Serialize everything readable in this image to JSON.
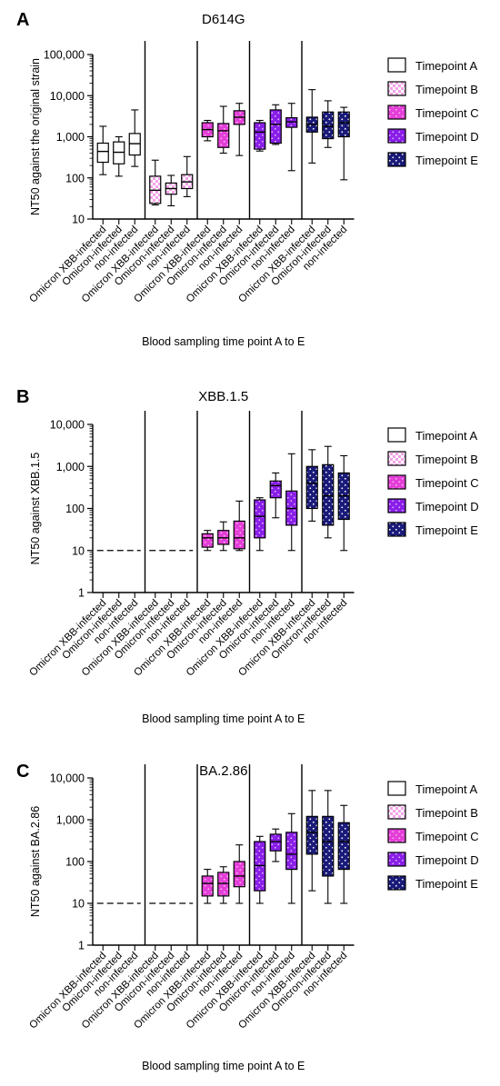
{
  "colors": {
    "A": "#ffffff",
    "B": "#f3a3e8",
    "C": "#e43ed8",
    "D": "#8a1ee8",
    "E": "#1a1a7a",
    "dots_B": "#ffffff",
    "dots_C": "#f6b6f0",
    "dots_D": "#d9b8ff",
    "dots_E": "#ffffff",
    "ink": "#000000"
  },
  "legend": {
    "items": [
      {
        "key": "A",
        "label": "Timepoint A"
      },
      {
        "key": "B",
        "label": "Timepoint B"
      },
      {
        "key": "C",
        "label": "Timepoint C"
      },
      {
        "key": "D",
        "label": "Timepoint D"
      },
      {
        "key": "E",
        "label": "Timepoint E"
      }
    ]
  },
  "chart_data": [
    {
      "panel": "A",
      "type": "box",
      "title": "D614G",
      "ylabel": "NT50 against the original strain",
      "xlabel": "Blood sampling time point A to E",
      "y_scale": "log",
      "ylim": [
        10,
        100000
      ],
      "yticks": [
        "10",
        "100",
        "1,000",
        "10,000",
        "100,000"
      ],
      "groups": [
        "Timepoint A",
        "Timepoint B",
        "Timepoint C",
        "Timepoint D",
        "Timepoint E"
      ],
      "categories": [
        "Omicron XBB-infected",
        "Omicron-infected",
        "non-infected"
      ],
      "boxes": [
        [
          {
            "min": 120,
            "q1": 240,
            "median": 440,
            "q3": 700,
            "max": 1800
          },
          {
            "min": 110,
            "q1": 220,
            "median": 420,
            "q3": 750,
            "max": 1000
          },
          {
            "min": 190,
            "q1": 360,
            "median": 680,
            "q3": 1200,
            "max": 4500
          }
        ],
        [
          {
            "min": 22,
            "q1": 24,
            "median": 50,
            "q3": 110,
            "max": 270
          },
          {
            "min": 21,
            "q1": 40,
            "median": 55,
            "q3": 75,
            "max": 115
          },
          {
            "min": 35,
            "q1": 55,
            "median": 80,
            "q3": 120,
            "max": 330
          }
        ],
        [
          {
            "min": 800,
            "q1": 1000,
            "median": 1500,
            "q3": 2200,
            "max": 2500
          },
          {
            "min": 400,
            "q1": 550,
            "median": 1400,
            "q3": 2100,
            "max": 5500
          },
          {
            "min": 350,
            "q1": 2000,
            "median": 3000,
            "q3": 4300,
            "max": 6500
          }
        ],
        [
          {
            "min": 450,
            "q1": 500,
            "median": 1300,
            "q3": 2200,
            "max": 2500
          },
          {
            "min": 650,
            "q1": 700,
            "median": 2000,
            "q3": 4500,
            "max": 6000
          },
          {
            "min": 150,
            "q1": 1700,
            "median": 2300,
            "q3": 2900,
            "max": 6500
          }
        ],
        [
          {
            "min": 230,
            "q1": 1300,
            "median": 2000,
            "q3": 3000,
            "max": 14000
          },
          {
            "min": 550,
            "q1": 900,
            "median": 1800,
            "q3": 4000,
            "max": 7500
          },
          {
            "min": 90,
            "q1": 1000,
            "median": 2200,
            "q3": 4000,
            "max": 5200
          }
        ]
      ]
    },
    {
      "panel": "B",
      "type": "box",
      "title": "XBB.1.5",
      "ylabel": "NT50 against XBB.1.5",
      "xlabel": "Blood sampling time point A to E",
      "y_scale": "log",
      "ylim": [
        1,
        10000
      ],
      "yticks": [
        "1",
        "10",
        "100",
        "1,000",
        "10,000"
      ],
      "groups": [
        "Timepoint A",
        "Timepoint B",
        "Timepoint C",
        "Timepoint D",
        "Timepoint E"
      ],
      "categories": [
        "Omicron XBB-infected",
        "Omicron-infected",
        "non-infected"
      ],
      "dashed_groups": [
        0,
        1
      ],
      "dashed_value": 10,
      "boxes": [
        [],
        [],
        [
          {
            "min": 10,
            "q1": 12,
            "median": 20,
            "q3": 25,
            "max": 30
          },
          {
            "min": 10,
            "q1": 14,
            "median": 20,
            "q3": 30,
            "max": 48
          },
          {
            "min": 10,
            "q1": 11,
            "median": 20,
            "q3": 50,
            "max": 150
          }
        ],
        [
          {
            "min": 10,
            "q1": 20,
            "median": 65,
            "q3": 160,
            "max": 180
          },
          {
            "min": 60,
            "q1": 180,
            "median": 350,
            "q3": 450,
            "max": 700
          },
          {
            "min": 10,
            "q1": 40,
            "median": 100,
            "q3": 260,
            "max": 2000
          }
        ],
        [
          {
            "min": 50,
            "q1": 100,
            "median": 400,
            "q3": 1000,
            "max": 2500
          },
          {
            "min": 20,
            "q1": 40,
            "median": 200,
            "q3": 1100,
            "max": 3000
          },
          {
            "min": 10,
            "q1": 55,
            "median": 200,
            "q3": 700,
            "max": 1800
          }
        ]
      ]
    },
    {
      "panel": "C",
      "type": "box",
      "title": "BA.2.86",
      "ylabel": "NT50 against BA.2.86",
      "xlabel": "Blood sampling time point A to E",
      "y_scale": "log",
      "ylim": [
        1,
        10000
      ],
      "yticks": [
        "1",
        "10",
        "100",
        "1,000",
        "10,000"
      ],
      "groups": [
        "Timepoint A",
        "Timepoint B",
        "Timepoint C",
        "Timepoint D",
        "Timepoint E"
      ],
      "categories": [
        "Omicron XBB-infected",
        "Omicron-infected",
        "non-infected"
      ],
      "dashed_groups": [
        0,
        1
      ],
      "dashed_value": 10,
      "boxes": [
        [],
        [],
        [
          {
            "min": 10,
            "q1": 15,
            "median": 30,
            "q3": 45,
            "max": 65
          },
          {
            "min": 10,
            "q1": 15,
            "median": 30,
            "q3": 55,
            "max": 75
          },
          {
            "min": 10,
            "q1": 25,
            "median": 45,
            "q3": 100,
            "max": 250
          }
        ],
        [
          {
            "min": 10,
            "q1": 20,
            "median": 80,
            "q3": 300,
            "max": 400
          },
          {
            "min": 100,
            "q1": 180,
            "median": 300,
            "q3": 450,
            "max": 600
          },
          {
            "min": 10,
            "q1": 65,
            "median": 150,
            "q3": 500,
            "max": 1400
          }
        ],
        [
          {
            "min": 20,
            "q1": 150,
            "median": 500,
            "q3": 1200,
            "max": 5000
          },
          {
            "min": 10,
            "q1": 45,
            "median": 300,
            "q3": 1200,
            "max": 5000
          },
          {
            "min": 10,
            "q1": 65,
            "median": 300,
            "q3": 850,
            "max": 2200
          }
        ]
      ]
    }
  ]
}
